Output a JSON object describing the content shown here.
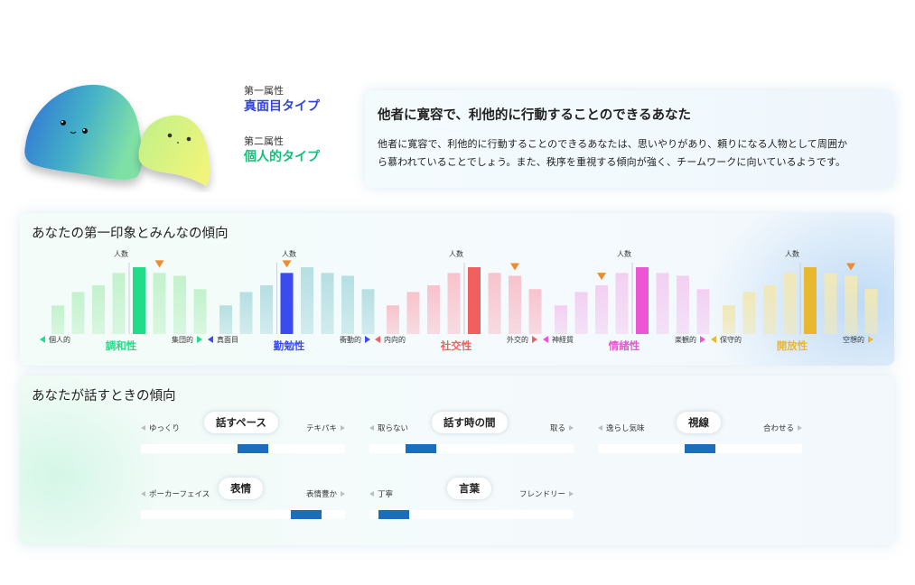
{
  "header": {
    "first_attr_label": "第一属性",
    "first_attr_value": "真面目タイプ",
    "second_attr_label": "第二属性",
    "second_attr_value": "個人的タイプ",
    "summary_title": "他者に寛容で、利他的に行動することのできるあなた",
    "summary_line1": "他者に寛容で、利他的に行動することのできるあなたは、思いやりがあり、頼りになる人物として周囲か",
    "summary_line2": "ら慕われていることでしょう。また、秩序を重視する傾向が強く、チームワークに向いているようです。"
  },
  "impression": {
    "title": "あなたの第一印象とみんなの傾向",
    "axis_label": "人数",
    "charts": [
      {
        "name": "調和性",
        "left": "個人的",
        "right": "集団的",
        "color": "#22dd88",
        "light": "#c2f2cc",
        "values": [
          30,
          44,
          51,
          64,
          70,
          64,
          61,
          47
        ],
        "highlight": 4,
        "marker": 5,
        "divider": 4
      },
      {
        "name": "勤勉性",
        "left": "真面目",
        "right": "衝動的",
        "color": "#3b4bf0",
        "light": "#b5dfe2",
        "values": [
          30,
          44,
          51,
          64,
          70,
          64,
          61,
          47
        ],
        "highlight": 3,
        "marker": 3,
        "divider": 3
      },
      {
        "name": "社交性",
        "left": "内向的",
        "right": "外交的",
        "color": "#f0605f",
        "light": "#f8c2cc",
        "values": [
          30,
          44,
          51,
          64,
          70,
          64,
          61,
          47
        ],
        "highlight": 4,
        "marker": 6,
        "divider": 4
      },
      {
        "name": "情緒性",
        "left": "神経質",
        "right": "楽観的",
        "color": "#ee55d4",
        "light": "#f3cff2",
        "values": [
          30,
          44,
          51,
          64,
          70,
          64,
          61,
          47
        ],
        "highlight": 4,
        "marker": 2,
        "divider": 4
      },
      {
        "name": "開放性",
        "left": "保守的",
        "right": "空想的",
        "color": "#e7b830",
        "light": "#f1e8b6",
        "values": [
          30,
          44,
          51,
          64,
          70,
          64,
          61,
          47
        ],
        "highlight": 4,
        "marker": 6,
        "divider": 4
      }
    ]
  },
  "speaking": {
    "title": "あなたが話すときの傾向",
    "sliders": [
      {
        "label": "話すペース",
        "left": "ゆっくり",
        "right": "テキパキ",
        "value": 0.55
      },
      {
        "label": "話す時の間",
        "left": "取らない",
        "right": "取る",
        "value": 0.25
      },
      {
        "label": "視線",
        "left": "逸らし気味",
        "right": "合わせる",
        "value": 0.5
      },
      {
        "label": "表情",
        "left": "ポーカーフェイス",
        "right": "表情豊か",
        "value": 0.81
      },
      {
        "label": "言葉",
        "left": "丁寧",
        "right": "フレンドリー",
        "value": 0.12
      }
    ]
  },
  "colors": {
    "marker": "#f08a30",
    "slider_fill": "#1c6dbb"
  }
}
